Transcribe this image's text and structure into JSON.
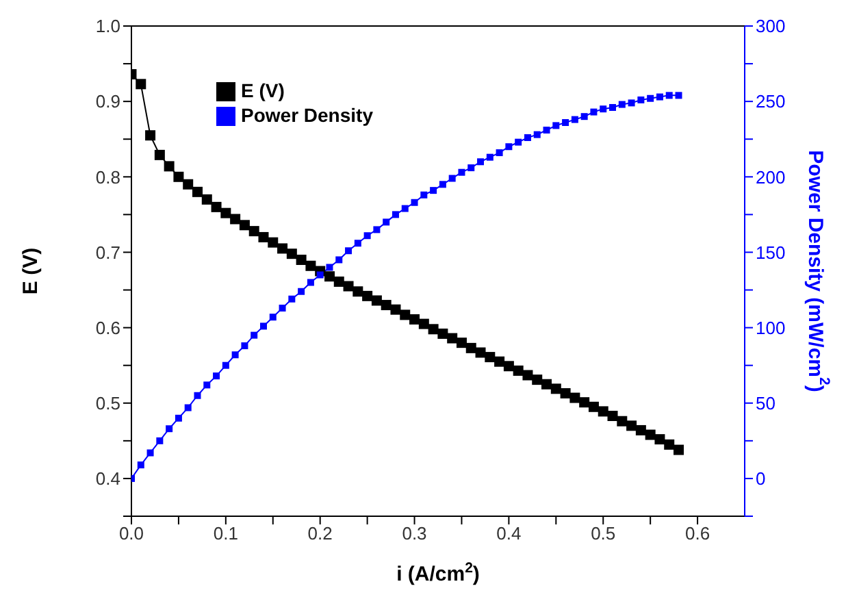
{
  "chart_data": {
    "type": "line",
    "xlabel": "i (A/cm$^{2}$)",
    "ylabel": "E (V)",
    "y2label": "Power Density (mW/cm$^{2}$)",
    "x": [
      0,
      0.01,
      0.02,
      0.03,
      0.04,
      0.05,
      0.06,
      0.07,
      0.08,
      0.09,
      0.1,
      0.11,
      0.12,
      0.13,
      0.14,
      0.15,
      0.16,
      0.17,
      0.18,
      0.19,
      0.2,
      0.21,
      0.22,
      0.23,
      0.24,
      0.25,
      0.26,
      0.27,
      0.28,
      0.29,
      0.3,
      0.31,
      0.32,
      0.33,
      0.34,
      0.35,
      0.36,
      0.37,
      0.38,
      0.39,
      0.4,
      0.41,
      0.42,
      0.43,
      0.44,
      0.45,
      0.46,
      0.47,
      0.48,
      0.49,
      0.5,
      0.51,
      0.52,
      0.53,
      0.54,
      0.55,
      0.56,
      0.57,
      0.58
    ],
    "series": [
      {
        "name": "E (V)",
        "color": "#000000",
        "values": [
          0.936,
          0.923,
          0.855,
          0.829,
          0.814,
          0.8,
          0.79,
          0.78,
          0.77,
          0.76,
          0.752,
          0.744,
          0.736,
          0.728,
          0.72,
          0.713,
          0.705,
          0.698,
          0.69,
          0.682,
          0.675,
          0.668,
          0.661,
          0.655,
          0.648,
          0.642,
          0.636,
          0.63,
          0.624,
          0.617,
          0.611,
          0.605,
          0.598,
          0.592,
          0.586,
          0.58,
          0.573,
          0.567,
          0.561,
          0.555,
          0.549,
          0.543,
          0.537,
          0.531,
          0.525,
          0.519,
          0.513,
          0.507,
          0.501,
          0.495,
          0.489,
          0.483,
          0.476,
          0.47,
          0.464,
          0.458,
          0.452,
          0.445,
          0.438
        ]
      },
      {
        "name": "Power Density",
        "color": "#0000ff",
        "axis": "y2",
        "values": [
          0,
          9,
          17,
          25,
          33,
          40,
          47,
          55,
          62,
          68,
          75,
          82,
          88,
          95,
          101,
          107,
          113,
          119,
          124,
          130,
          135,
          140,
          145,
          151,
          156,
          161,
          165,
          170,
          175,
          179,
          183,
          188,
          191,
          195,
          199,
          203,
          206,
          210,
          213,
          216,
          220,
          223,
          226,
          228,
          231,
          234,
          236,
          238,
          240,
          243,
          245,
          246,
          248,
          249,
          251,
          252,
          253,
          254,
          254
        ]
      }
    ],
    "xlim": [
      0,
      0.65
    ],
    "xticks": [
      {
        "value": 0,
        "label": "0.0"
      },
      {
        "value": 0.05,
        "label": null
      },
      0.1,
      {
        "value": 0.15,
        "label": null
      },
      0.2,
      {
        "value": 0.25,
        "label": null
      },
      0.3,
      {
        "value": 0.35,
        "label": null
      },
      0.4,
      {
        "value": 0.45,
        "label": null
      },
      0.5,
      {
        "value": 0.55,
        "label": null
      },
      0.6
    ],
    "ylim": [
      0.35,
      1.0
    ],
    "yticks": [
      {
        "value": 0.35,
        "label": null
      },
      0.4,
      {
        "value": 0.45,
        "label": null
      },
      0.5,
      {
        "value": 0.55,
        "label": null
      },
      0.6,
      {
        "value": 0.65,
        "label": null
      },
      0.7,
      {
        "value": 0.75,
        "label": null
      },
      0.8,
      {
        "value": 0.85,
        "label": null
      },
      0.9,
      {
        "value": 0.95,
        "label": null
      },
      {
        "value": 1.0,
        "label": "1.0"
      }
    ],
    "y2lim": [
      -25,
      300
    ],
    "y2ticks": [
      {
        "value": -25,
        "label": null
      },
      0,
      {
        "value": 25,
        "label": null
      },
      50,
      {
        "value": 75,
        "label": null
      },
      100,
      {
        "value": 125,
        "label": null
      },
      150,
      {
        "value": 175,
        "label": null
      },
      200,
      {
        "value": 225,
        "label": null
      },
      250,
      {
        "value": 275,
        "label": null
      },
      300
    ],
    "legend": "top left",
    "marker": "square",
    "line_style": "solid",
    "grid": false
  }
}
